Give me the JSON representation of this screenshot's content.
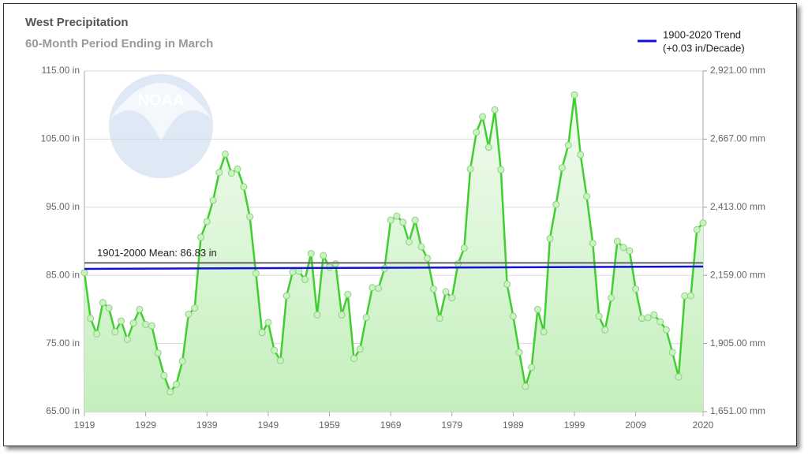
{
  "chart_data": {
    "type": "line",
    "title": "West Precipitation",
    "subtitle": "60-Month Period Ending in March",
    "watermark": "NOAA",
    "x": [
      1919,
      1920,
      1921,
      1922,
      1923,
      1924,
      1925,
      1926,
      1927,
      1928,
      1929,
      1930,
      1931,
      1932,
      1933,
      1934,
      1935,
      1936,
      1937,
      1938,
      1939,
      1940,
      1941,
      1942,
      1943,
      1944,
      1945,
      1946,
      1947,
      1948,
      1949,
      1950,
      1951,
      1952,
      1953,
      1954,
      1955,
      1956,
      1957,
      1958,
      1959,
      1960,
      1961,
      1962,
      1963,
      1964,
      1965,
      1966,
      1967,
      1968,
      1969,
      1970,
      1971,
      1972,
      1973,
      1974,
      1975,
      1976,
      1977,
      1978,
      1979,
      1980,
      1981,
      1982,
      1983,
      1984,
      1985,
      1986,
      1987,
      1988,
      1989,
      1990,
      1991,
      1992,
      1993,
      1994,
      1995,
      1996,
      1997,
      1998,
      1999,
      2000,
      2001,
      2002,
      2003,
      2004,
      2005,
      2006,
      2007,
      2008,
      2009,
      2010,
      2011,
      2012,
      2013,
      2014,
      2015,
      2016,
      2017,
      2018,
      2019,
      2020
    ],
    "series": [
      {
        "color": "#3fcf2f",
        "area": true,
        "values": [
          85.4,
          78.7,
          76.4,
          81.0,
          80.2,
          76.7,
          78.3,
          75.6,
          78.0,
          80.0,
          77.8,
          77.6,
          73.6,
          70.3,
          67.9,
          69.0,
          72.4,
          79.3,
          80.2,
          90.6,
          92.9,
          96.0,
          100.1,
          102.8,
          100.0,
          100.6,
          98.0,
          93.6,
          85.3,
          76.6,
          78.1,
          74.0,
          72.5,
          82.0,
          85.5,
          85.6,
          84.4,
          88.2,
          79.2,
          87.9,
          86.2,
          86.7,
          79.2,
          82.2,
          72.8,
          74.2,
          78.8,
          83.2,
          83.1,
          86.0,
          93.1,
          93.7,
          92.8,
          89.9,
          93.1,
          89.2,
          87.5,
          83.0,
          78.7,
          82.6,
          81.7,
          86.7,
          89.0,
          100.6,
          106.0,
          108.3,
          103.8,
          109.3,
          100.5,
          83.7,
          79.0,
          73.7,
          68.7,
          71.5,
          80.0,
          76.7,
          90.4,
          95.4,
          100.8,
          104.1,
          111.5,
          102.7,
          96.6,
          89.7,
          79.0,
          77.0,
          81.7,
          90.0,
          89.1,
          88.6,
          83.0,
          78.7,
          78.8,
          79.2,
          78.2,
          77.0,
          73.7,
          70.1,
          82.0,
          82.0,
          91.7,
          92.7
        ]
      },
      {
        "name": "1900-2020 Trend",
        "label": "(+0.03 in/Decade)",
        "color": "#1010dd",
        "x": [
          1919,
          2020
        ],
        "values": [
          85.95,
          86.3
        ]
      }
    ],
    "annotations": [
      {
        "text": "1901-2000 Mean: 86.83 in",
        "value": 86.83,
        "color": "#666666"
      }
    ],
    "xlim": [
      1919,
      2020
    ],
    "xticks": [
      1919,
      1929,
      1939,
      1949,
      1959,
      1969,
      1979,
      1989,
      1999,
      2009,
      2020
    ],
    "ylim": [
      65,
      115
    ],
    "yticks": [
      {
        "value": 65,
        "label": "65.00 in"
      },
      {
        "value": 75,
        "label": "75.00 in"
      },
      {
        "value": 85,
        "label": "85.00 in"
      },
      {
        "value": 95,
        "label": "95.00 in"
      },
      {
        "value": 105,
        "label": "105.00 in"
      },
      {
        "value": 115,
        "label": "115.00 in"
      }
    ],
    "y2lim": [
      1651,
      2921
    ],
    "y2ticks": [
      {
        "value": 1651,
        "label": "1,651.00 mm"
      },
      {
        "value": 1905,
        "label": "1,905.00 mm"
      },
      {
        "value": 2159,
        "label": "2,159.00 mm"
      },
      {
        "value": 2413,
        "label": "2,413.00 mm"
      },
      {
        "value": 2667,
        "label": "2,667.00 mm"
      },
      {
        "value": 2921,
        "label": "2,921.00 mm"
      }
    ],
    "grid": true,
    "legend": "top-right"
  }
}
